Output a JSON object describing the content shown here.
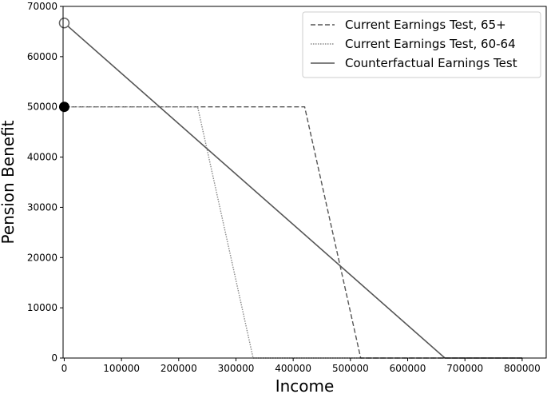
{
  "chart_data": {
    "type": "line",
    "xlabel": "Income",
    "ylabel": "Pension Benefit",
    "xlim": [
      -2000,
      842000
    ],
    "ylim": [
      0,
      70000
    ],
    "xticks": [
      0,
      100000,
      200000,
      300000,
      400000,
      500000,
      600000,
      700000,
      800000
    ],
    "yticks": [
      0,
      10000,
      20000,
      30000,
      40000,
      50000,
      60000,
      70000
    ],
    "grid": false,
    "legend_position": "top-right",
    "series": [
      {
        "name": "Current Earnings Test, 65+",
        "style": "dashed",
        "color": "#555555",
        "points": [
          [
            0,
            50000
          ],
          [
            420000,
            50000
          ],
          [
            518000,
            0
          ],
          [
            800000,
            0
          ]
        ]
      },
      {
        "name": "Current Earnings Test, 60-64",
        "style": "dotted",
        "color": "#888888",
        "points": [
          [
            0,
            50000
          ],
          [
            233000,
            50000
          ],
          [
            330000,
            0
          ],
          [
            800000,
            0
          ]
        ]
      },
      {
        "name": "Counterfactual Earnings Test",
        "style": "solid",
        "color": "#555555",
        "points": [
          [
            0,
            66700
          ],
          [
            665000,
            0
          ],
          [
            800000,
            0
          ]
        ]
      }
    ],
    "markers": [
      {
        "x": 0,
        "y": 66700,
        "style": "hollow-circle"
      },
      {
        "x": 0,
        "y": 50000,
        "style": "filled-circle"
      }
    ]
  }
}
